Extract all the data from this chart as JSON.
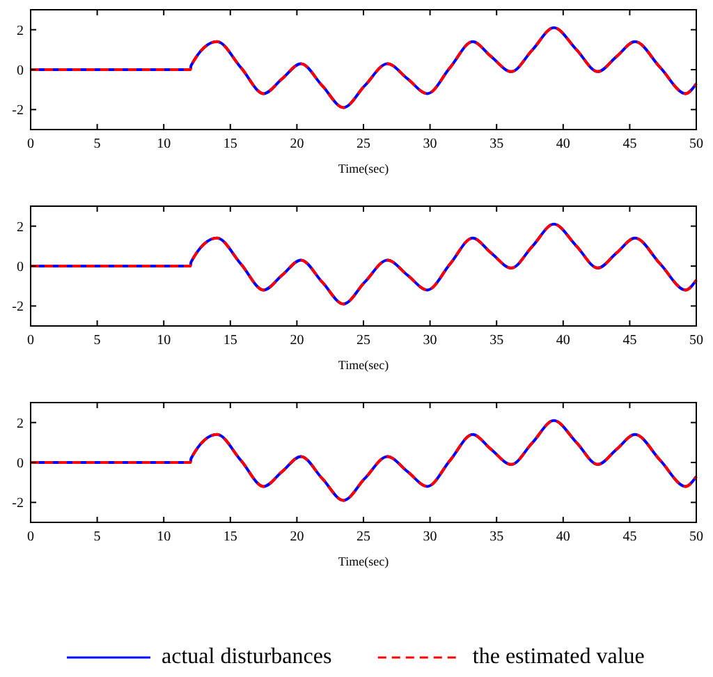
{
  "chart_data": [
    {
      "type": "line",
      "xlabel": "Time(sec)",
      "x": [
        0,
        12,
        12.05,
        14,
        15.8,
        17.5,
        18.9,
        20.3,
        21.9,
        23.5,
        25.1,
        26.8,
        28.3,
        29.8,
        31.5,
        33.2,
        34.6,
        36.1,
        37.7,
        39.3,
        41,
        42.6,
        44,
        45.4,
        47.3,
        49.2,
        50
      ],
      "xlim": [
        0,
        50
      ],
      "xticks": [
        0,
        5,
        10,
        15,
        20,
        25,
        30,
        35,
        40,
        45,
        50
      ],
      "ylim": [
        -3,
        3
      ],
      "yticks": [
        -2,
        0,
        2
      ],
      "legend": false,
      "series": [
        {
          "color": "#0000ff",
          "line_style": "solid",
          "values": [
            0,
            0,
            0.2,
            1.4,
            0.1,
            -1.2,
            -0.45,
            0.3,
            -0.8,
            -1.9,
            -0.8,
            0.3,
            -0.45,
            -1.2,
            0.1,
            1.4,
            0.65,
            -0.1,
            1.0,
            2.1,
            1.0,
            -0.1,
            0.65,
            1.4,
            0.1,
            -1.2,
            -0.7
          ]
        },
        {
          "color": "#ff0000",
          "line_style": "dashed",
          "values": [
            0,
            0,
            0.2,
            1.4,
            0.1,
            -1.2,
            -0.45,
            0.3,
            -0.8,
            -1.9,
            -0.8,
            0.3,
            -0.45,
            -1.2,
            0.1,
            1.4,
            0.65,
            -0.1,
            1.0,
            2.1,
            1.0,
            -0.1,
            0.65,
            1.4,
            0.1,
            -1.2,
            -0.7
          ]
        }
      ]
    },
    {
      "type": "line",
      "xlabel": "Time(sec)",
      "x": [
        0,
        12,
        12.05,
        14,
        15.8,
        17.5,
        18.9,
        20.3,
        21.9,
        23.5,
        25.1,
        26.8,
        28.3,
        29.8,
        31.5,
        33.2,
        34.6,
        36.1,
        37.7,
        39.3,
        41,
        42.6,
        44,
        45.4,
        47.3,
        49.2,
        50
      ],
      "xlim": [
        0,
        50
      ],
      "xticks": [
        0,
        5,
        10,
        15,
        20,
        25,
        30,
        35,
        40,
        45,
        50
      ],
      "ylim": [
        -3,
        3
      ],
      "yticks": [
        -2,
        0,
        2
      ],
      "legend": false,
      "series": [
        {
          "color": "#0000ff",
          "line_style": "solid",
          "values": [
            0,
            0,
            0.2,
            1.4,
            0.1,
            -1.2,
            -0.45,
            0.3,
            -0.8,
            -1.9,
            -0.8,
            0.3,
            -0.45,
            -1.2,
            0.1,
            1.4,
            0.65,
            -0.1,
            1.0,
            2.1,
            1.0,
            -0.1,
            0.65,
            1.4,
            0.1,
            -1.2,
            -0.7
          ]
        },
        {
          "color": "#ff0000",
          "line_style": "dashed",
          "values": [
            0,
            0,
            0.2,
            1.4,
            0.1,
            -1.2,
            -0.45,
            0.3,
            -0.8,
            -1.9,
            -0.8,
            0.3,
            -0.45,
            -1.2,
            0.1,
            1.4,
            0.65,
            -0.1,
            1.0,
            2.1,
            1.0,
            -0.1,
            0.65,
            1.4,
            0.1,
            -1.2,
            -0.7
          ]
        }
      ]
    },
    {
      "type": "line",
      "xlabel": "Time(sec)",
      "x": [
        0,
        12,
        12.05,
        14,
        15.8,
        17.5,
        18.9,
        20.3,
        21.9,
        23.5,
        25.1,
        26.8,
        28.3,
        29.8,
        31.5,
        33.2,
        34.6,
        36.1,
        37.7,
        39.3,
        41,
        42.6,
        44,
        45.4,
        47.3,
        49.2,
        50
      ],
      "xlim": [
        0,
        50
      ],
      "xticks": [
        0,
        5,
        10,
        15,
        20,
        25,
        30,
        35,
        40,
        45,
        50
      ],
      "ylim": [
        -3,
        3
      ],
      "yticks": [
        -2,
        0,
        2
      ],
      "legend": "bottom",
      "series": [
        {
          "name": "actual disturbances",
          "color": "#0000ff",
          "line_style": "solid",
          "values": [
            0,
            0,
            0.2,
            1.4,
            0.1,
            -1.2,
            -0.45,
            0.3,
            -0.8,
            -1.9,
            -0.8,
            0.3,
            -0.45,
            -1.2,
            0.1,
            1.4,
            0.65,
            -0.1,
            1.0,
            2.1,
            1.0,
            -0.1,
            0.65,
            1.4,
            0.1,
            -1.2,
            -0.7
          ]
        },
        {
          "name": "the estimated value",
          "color": "#ff0000",
          "line_style": "dashed",
          "values": [
            0,
            0,
            0.2,
            1.4,
            0.1,
            -1.2,
            -0.45,
            0.3,
            -0.8,
            -1.9,
            -0.8,
            0.3,
            -0.45,
            -1.2,
            0.1,
            1.4,
            0.65,
            -0.1,
            1.0,
            2.1,
            1.0,
            -0.1,
            0.65,
            1.4,
            0.1,
            -1.2,
            -0.7
          ]
        }
      ]
    }
  ]
}
